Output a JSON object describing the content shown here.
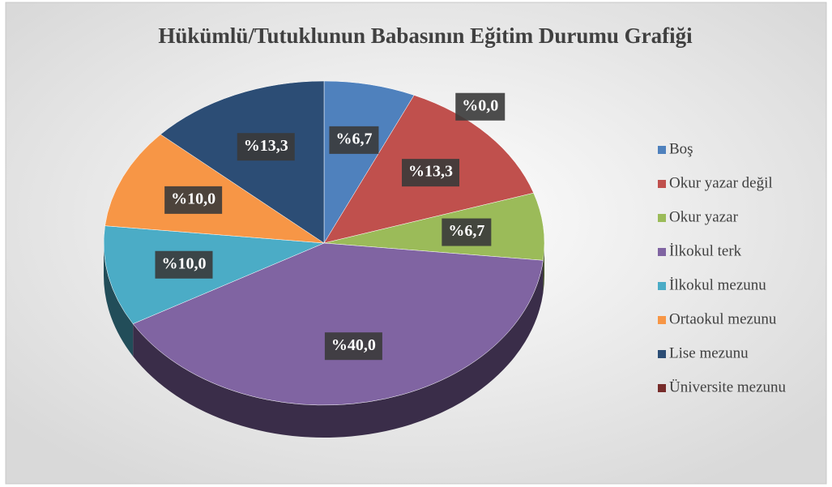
{
  "chart_data": {
    "type": "pie",
    "title": "Hükümlü/Tutuklunun Babasının Eğitim Durumu Grafiği",
    "categories": [
      "Boş",
      "Okur yazar değil",
      "Okur yazar",
      "İlkokul terk",
      "İlkokul mezunu",
      "Ortaokul mezunu",
      "Lise mezunu",
      "Üniversite mezunu"
    ],
    "values": [
      6.7,
      13.3,
      6.7,
      40.0,
      10.0,
      10.0,
      13.3,
      0.0
    ],
    "value_labels": [
      "%6,7",
      "%13,3",
      "%6,7",
      "%40,0",
      "%10,0",
      "%10,0",
      "%13,3",
      "%0,0"
    ],
    "colors": [
      "#4f81bd",
      "#c0504d",
      "#9bbb59",
      "#8064a2",
      "#4bacc6",
      "#f79646",
      "#2c4d75",
      "#772c2a"
    ],
    "legend": "right"
  }
}
